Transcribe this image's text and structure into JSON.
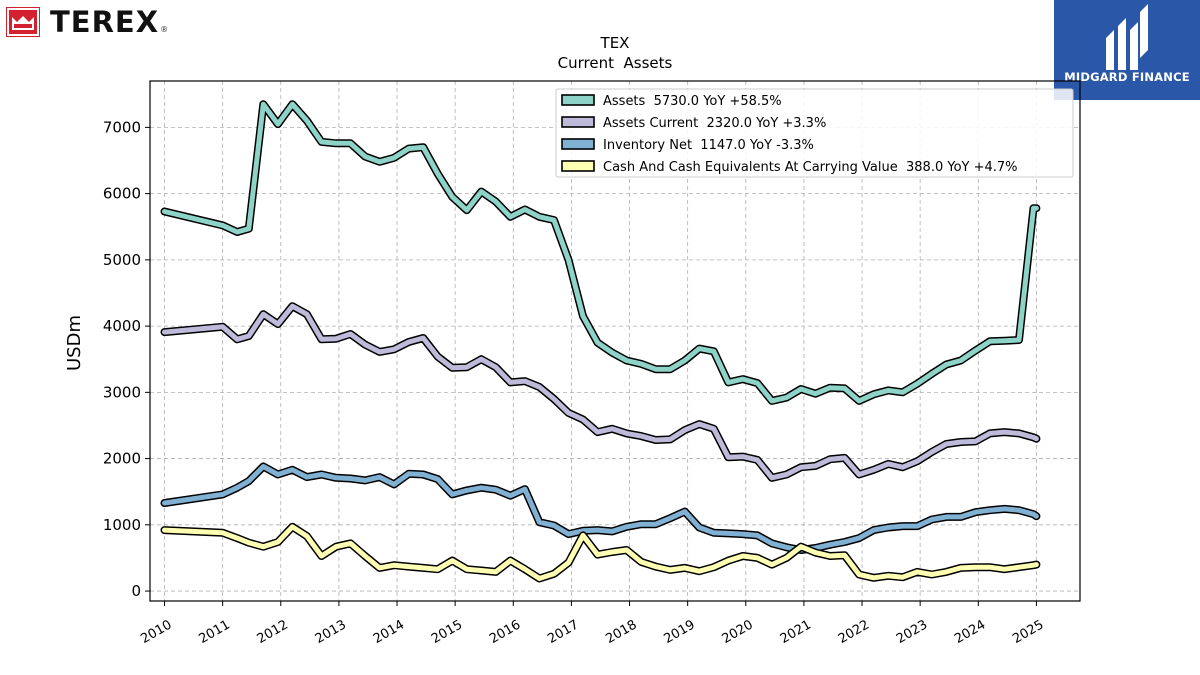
{
  "header": {
    "company_logo_text": "TEREX",
    "company_logo_reg": "®",
    "brand_name": "MIDGARD FINANCE"
  },
  "colors": {
    "brand_background": "#2b57a8",
    "logo_red": "#d4212f"
  },
  "chart_data": {
    "type": "line",
    "title": "TEX",
    "subtitle": "Current  Assets",
    "xlabel": "",
    "ylabel": "USDm",
    "ylim": [
      -150,
      7700
    ],
    "xlim": [
      2009.75,
      2025.75
    ],
    "grid": true,
    "legend_position": "top-right",
    "y_ticks": [
      0,
      1000,
      2000,
      3000,
      4000,
      5000,
      6000,
      7000
    ],
    "x_ticks": [
      "2010",
      "2011",
      "2012",
      "2013",
      "2014",
      "2015",
      "2016",
      "2017",
      "2018",
      "2019",
      "2020",
      "2021",
      "2022",
      "2023",
      "2024",
      "2025"
    ],
    "series": [
      {
        "name": "Assets",
        "legend": "Assets  5730.0 YoY +58.5%",
        "color": "#8dd3c7",
        "points": [
          [
            2010.0,
            5730
          ],
          [
            2011.0,
            5520
          ],
          [
            2011.25,
            5420
          ],
          [
            2011.45,
            5470
          ],
          [
            2011.7,
            7350
          ],
          [
            2011.95,
            7050
          ],
          [
            2012.2,
            7350
          ],
          [
            2012.45,
            7100
          ],
          [
            2012.7,
            6780
          ],
          [
            2012.95,
            6760
          ],
          [
            2013.2,
            6760
          ],
          [
            2013.45,
            6560
          ],
          [
            2013.7,
            6480
          ],
          [
            2013.95,
            6540
          ],
          [
            2014.2,
            6680
          ],
          [
            2014.45,
            6700
          ],
          [
            2014.7,
            6300
          ],
          [
            2014.95,
            5950
          ],
          [
            2015.2,
            5750
          ],
          [
            2015.45,
            6030
          ],
          [
            2015.7,
            5880
          ],
          [
            2015.95,
            5650
          ],
          [
            2016.2,
            5760
          ],
          [
            2016.45,
            5650
          ],
          [
            2016.7,
            5600
          ],
          [
            2016.95,
            5000
          ],
          [
            2017.2,
            4150
          ],
          [
            2017.45,
            3750
          ],
          [
            2017.7,
            3600
          ],
          [
            2017.95,
            3480
          ],
          [
            2018.2,
            3430
          ],
          [
            2018.45,
            3350
          ],
          [
            2018.7,
            3350
          ],
          [
            2018.95,
            3480
          ],
          [
            2019.2,
            3660
          ],
          [
            2019.45,
            3620
          ],
          [
            2019.7,
            3150
          ],
          [
            2019.95,
            3200
          ],
          [
            2020.2,
            3140
          ],
          [
            2020.45,
            2870
          ],
          [
            2020.7,
            2920
          ],
          [
            2020.95,
            3050
          ],
          [
            2021.2,
            2980
          ],
          [
            2021.45,
            3070
          ],
          [
            2021.7,
            3060
          ],
          [
            2021.95,
            2870
          ],
          [
            2022.2,
            2970
          ],
          [
            2022.45,
            3030
          ],
          [
            2022.7,
            3000
          ],
          [
            2022.95,
            3130
          ],
          [
            2023.2,
            3280
          ],
          [
            2023.45,
            3420
          ],
          [
            2023.7,
            3480
          ],
          [
            2023.95,
            3630
          ],
          [
            2024.2,
            3770
          ],
          [
            2024.45,
            3780
          ],
          [
            2024.7,
            3790
          ],
          [
            2024.95,
            5780
          ],
          [
            2025.0,
            5780
          ]
        ]
      },
      {
        "name": "Assets Current",
        "legend": "Assets Current  2320.0 YoY +3.3%",
        "color": "#bebada",
        "points": [
          [
            2010.0,
            3910
          ],
          [
            2011.0,
            3990
          ],
          [
            2011.25,
            3800
          ],
          [
            2011.45,
            3850
          ],
          [
            2011.7,
            4180
          ],
          [
            2011.95,
            4030
          ],
          [
            2012.2,
            4300
          ],
          [
            2012.45,
            4180
          ],
          [
            2012.7,
            3800
          ],
          [
            2012.95,
            3810
          ],
          [
            2013.2,
            3880
          ],
          [
            2013.45,
            3720
          ],
          [
            2013.7,
            3610
          ],
          [
            2013.95,
            3650
          ],
          [
            2014.2,
            3760
          ],
          [
            2014.45,
            3820
          ],
          [
            2014.7,
            3540
          ],
          [
            2014.95,
            3370
          ],
          [
            2015.2,
            3380
          ],
          [
            2015.45,
            3500
          ],
          [
            2015.7,
            3380
          ],
          [
            2015.95,
            3150
          ],
          [
            2016.2,
            3170
          ],
          [
            2016.45,
            3080
          ],
          [
            2016.7,
            2900
          ],
          [
            2016.95,
            2690
          ],
          [
            2017.2,
            2590
          ],
          [
            2017.45,
            2400
          ],
          [
            2017.7,
            2450
          ],
          [
            2017.95,
            2380
          ],
          [
            2018.2,
            2340
          ],
          [
            2018.45,
            2280
          ],
          [
            2018.7,
            2290
          ],
          [
            2018.95,
            2430
          ],
          [
            2019.2,
            2520
          ],
          [
            2019.45,
            2450
          ],
          [
            2019.7,
            2020
          ],
          [
            2019.95,
            2030
          ],
          [
            2020.2,
            1980
          ],
          [
            2020.45,
            1710
          ],
          [
            2020.7,
            1760
          ],
          [
            2020.95,
            1870
          ],
          [
            2021.2,
            1890
          ],
          [
            2021.45,
            1990
          ],
          [
            2021.7,
            2010
          ],
          [
            2021.95,
            1760
          ],
          [
            2022.2,
            1830
          ],
          [
            2022.45,
            1920
          ],
          [
            2022.7,
            1870
          ],
          [
            2022.95,
            1960
          ],
          [
            2023.2,
            2100
          ],
          [
            2023.45,
            2220
          ],
          [
            2023.7,
            2250
          ],
          [
            2023.95,
            2260
          ],
          [
            2024.2,
            2380
          ],
          [
            2024.45,
            2400
          ],
          [
            2024.7,
            2380
          ],
          [
            2024.95,
            2320
          ],
          [
            2025.0,
            2300
          ]
        ]
      },
      {
        "name": "Inventory Net",
        "legend": "Inventory Net  1147.0 YoY -3.3%",
        "color": "#80b1d3",
        "points": [
          [
            2010.0,
            1330
          ],
          [
            2011.0,
            1460
          ],
          [
            2011.25,
            1560
          ],
          [
            2011.45,
            1660
          ],
          [
            2011.7,
            1880
          ],
          [
            2011.95,
            1760
          ],
          [
            2012.2,
            1830
          ],
          [
            2012.45,
            1720
          ],
          [
            2012.7,
            1760
          ],
          [
            2012.95,
            1710
          ],
          [
            2013.2,
            1700
          ],
          [
            2013.45,
            1670
          ],
          [
            2013.7,
            1720
          ],
          [
            2013.95,
            1610
          ],
          [
            2014.2,
            1770
          ],
          [
            2014.45,
            1760
          ],
          [
            2014.7,
            1690
          ],
          [
            2014.95,
            1460
          ],
          [
            2015.2,
            1520
          ],
          [
            2015.45,
            1560
          ],
          [
            2015.7,
            1530
          ],
          [
            2015.95,
            1440
          ],
          [
            2016.2,
            1540
          ],
          [
            2016.45,
            1040
          ],
          [
            2016.7,
            990
          ],
          [
            2016.95,
            860
          ],
          [
            2017.2,
            910
          ],
          [
            2017.45,
            920
          ],
          [
            2017.7,
            900
          ],
          [
            2017.95,
            970
          ],
          [
            2018.2,
            1010
          ],
          [
            2018.45,
            1010
          ],
          [
            2018.7,
            1100
          ],
          [
            2018.95,
            1200
          ],
          [
            2019.2,
            960
          ],
          [
            2019.45,
            880
          ],
          [
            2019.7,
            870
          ],
          [
            2019.95,
            860
          ],
          [
            2020.2,
            840
          ],
          [
            2020.45,
            720
          ],
          [
            2020.7,
            660
          ],
          [
            2020.95,
            620
          ],
          [
            2021.2,
            650
          ],
          [
            2021.45,
            700
          ],
          [
            2021.7,
            740
          ],
          [
            2021.95,
            800
          ],
          [
            2022.2,
            920
          ],
          [
            2022.45,
            960
          ],
          [
            2022.7,
            980
          ],
          [
            2022.95,
            980
          ],
          [
            2023.2,
            1080
          ],
          [
            2023.45,
            1120
          ],
          [
            2023.7,
            1120
          ],
          [
            2023.95,
            1190
          ],
          [
            2024.2,
            1220
          ],
          [
            2024.45,
            1240
          ],
          [
            2024.7,
            1220
          ],
          [
            2024.95,
            1160
          ],
          [
            2025.0,
            1130
          ]
        ]
      },
      {
        "name": "Cash And Cash Equivalents At Carrying Value",
        "legend": "Cash And Cash Equivalents At Carrying Value  388.0 YoY +4.7%",
        "color": "#ffffb3",
        "points": [
          [
            2010.0,
            920
          ],
          [
            2011.0,
            880
          ],
          [
            2011.25,
            800
          ],
          [
            2011.45,
            730
          ],
          [
            2011.7,
            670
          ],
          [
            2011.95,
            740
          ],
          [
            2012.2,
            970
          ],
          [
            2012.45,
            830
          ],
          [
            2012.7,
            530
          ],
          [
            2012.95,
            670
          ],
          [
            2013.2,
            720
          ],
          [
            2013.45,
            530
          ],
          [
            2013.7,
            350
          ],
          [
            2013.95,
            390
          ],
          [
            2014.2,
            370
          ],
          [
            2014.45,
            350
          ],
          [
            2014.7,
            330
          ],
          [
            2014.95,
            460
          ],
          [
            2015.2,
            330
          ],
          [
            2015.45,
            310
          ],
          [
            2015.7,
            290
          ],
          [
            2015.95,
            460
          ],
          [
            2016.2,
            330
          ],
          [
            2016.45,
            190
          ],
          [
            2016.7,
            260
          ],
          [
            2016.95,
            430
          ],
          [
            2017.2,
            840
          ],
          [
            2017.45,
            550
          ],
          [
            2017.7,
            590
          ],
          [
            2017.95,
            620
          ],
          [
            2018.2,
            440
          ],
          [
            2018.45,
            370
          ],
          [
            2018.7,
            320
          ],
          [
            2018.95,
            350
          ],
          [
            2019.2,
            300
          ],
          [
            2019.45,
            360
          ],
          [
            2019.7,
            460
          ],
          [
            2019.95,
            530
          ],
          [
            2020.2,
            500
          ],
          [
            2020.45,
            400
          ],
          [
            2020.7,
            500
          ],
          [
            2020.95,
            670
          ],
          [
            2021.2,
            580
          ],
          [
            2021.45,
            530
          ],
          [
            2021.7,
            540
          ],
          [
            2021.95,
            250
          ],
          [
            2022.2,
            200
          ],
          [
            2022.45,
            230
          ],
          [
            2022.7,
            210
          ],
          [
            2022.95,
            290
          ],
          [
            2023.2,
            250
          ],
          [
            2023.45,
            290
          ],
          [
            2023.7,
            350
          ],
          [
            2023.95,
            360
          ],
          [
            2024.2,
            360
          ],
          [
            2024.45,
            330
          ],
          [
            2024.7,
            360
          ],
          [
            2024.95,
            390
          ],
          [
            2025.0,
            400
          ]
        ]
      }
    ]
  }
}
